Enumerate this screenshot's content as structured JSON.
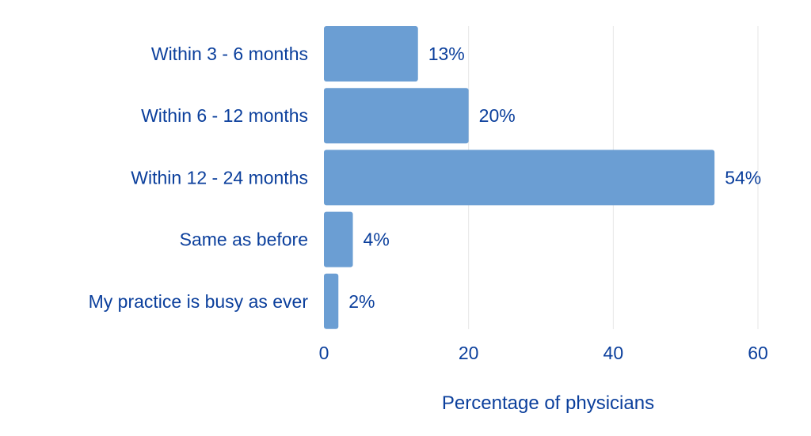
{
  "chart_data": {
    "type": "bar",
    "orientation": "horizontal",
    "categories": [
      "Within 3 - 6 months",
      "Within 6 - 12 months",
      "Within 12 - 24 months",
      "Same as before",
      "My practice is busy as ever"
    ],
    "values": [
      13,
      20,
      54,
      4,
      2
    ],
    "value_labels": [
      "13%",
      "20%",
      "54%",
      "4%",
      "2%"
    ],
    "xlabel": "Percentage of physicians",
    "xlim": [
      0,
      60
    ],
    "xticks": [
      0,
      20,
      40,
      60
    ],
    "grid": "vertical",
    "legend": "none"
  },
  "colors": {
    "bar": "#6b9ed3",
    "text": "#0b3f9c",
    "grid": "#e6e6e6"
  }
}
